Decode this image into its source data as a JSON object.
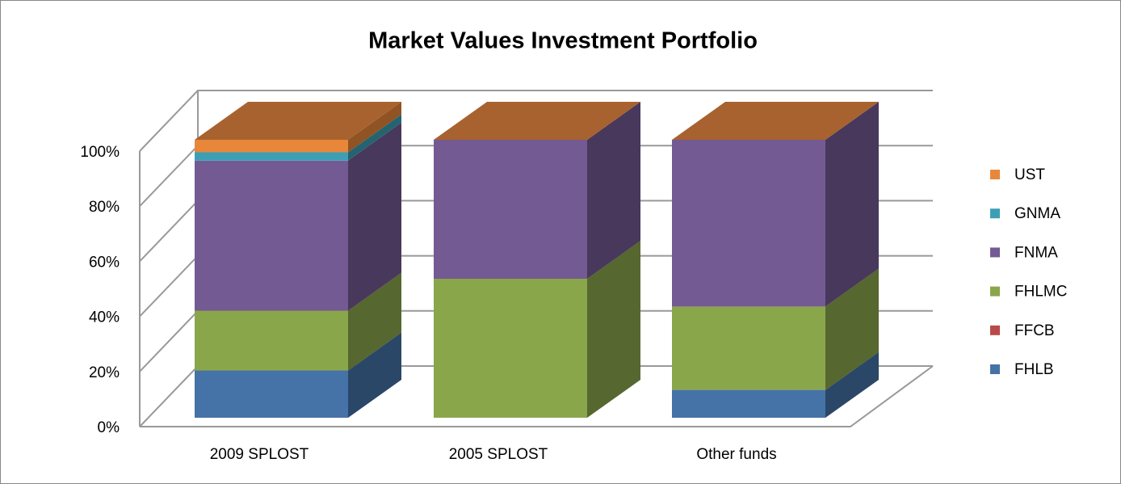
{
  "chart_data": {
    "type": "bar3d_stacked",
    "title": "Market Values Investment Portfolio",
    "categories": [
      "2009 SPLOST",
      "2005 SPLOST",
      "Other funds"
    ],
    "series": [
      {
        "name": "FHLB",
        "color": "#4572a7",
        "values": [
          17,
          0,
          10
        ]
      },
      {
        "name": "FFCB",
        "color": "#b94a48",
        "values": [
          0,
          0,
          0
        ]
      },
      {
        "name": "FHLMC",
        "color": "#8aa64b",
        "values": [
          21.5,
          50,
          30
        ]
      },
      {
        "name": "FNMA",
        "color": "#745a93",
        "values": [
          54,
          50,
          60
        ]
      },
      {
        "name": "GNMA",
        "color": "#3d9fb5",
        "values": [
          3,
          0,
          0
        ]
      },
      {
        "name": "UST",
        "color": "#e8873a",
        "values": [
          4.5,
          0,
          0
        ]
      }
    ],
    "ylim": [
      0,
      100
    ],
    "yticks": [
      {
        "value": 0,
        "label": "0%"
      },
      {
        "value": 20,
        "label": "20%"
      },
      {
        "value": 40,
        "label": "40%"
      },
      {
        "value": 60,
        "label": "60%"
      },
      {
        "value": 80,
        "label": "80%"
      },
      {
        "value": 100,
        "label": "100%"
      }
    ],
    "grid": true,
    "legend": "right"
  }
}
